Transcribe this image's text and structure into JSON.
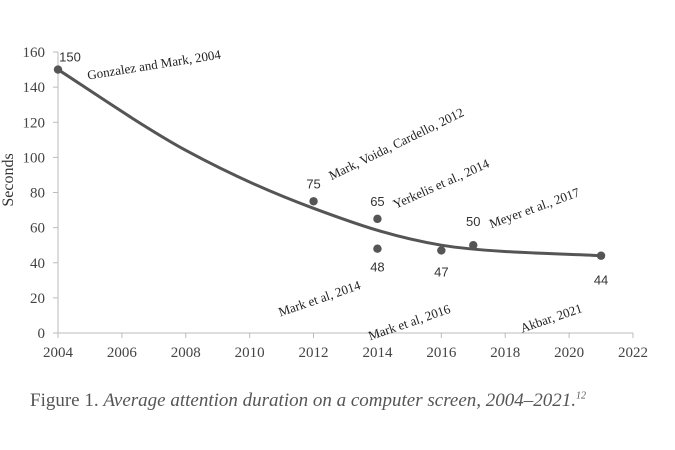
{
  "chart_data": {
    "type": "scatter",
    "ylabel": "Seconds",
    "xlim": [
      2004,
      2022
    ],
    "ylim": [
      0,
      160
    ],
    "xticks": [
      "2004",
      "2006",
      "2008",
      "2010",
      "2012",
      "2014",
      "2016",
      "2018",
      "2020",
      "2022"
    ],
    "yticks": [
      "0",
      "20",
      "40",
      "60",
      "80",
      "100",
      "120",
      "140",
      "160"
    ],
    "grid": false,
    "series": [
      {
        "points": [
          {
            "x": 2004,
            "y": 150,
            "label": "150",
            "citation": "Gonzalez and Mark, 2004"
          },
          {
            "x": 2012,
            "y": 75,
            "label": "75",
            "citation": "Mark, Voida, Cardello, 2012"
          },
          {
            "x": 2014,
            "y": 65,
            "label": "65",
            "citation": "Yerkelis et al., 2014"
          },
          {
            "x": 2014,
            "y": 48,
            "label": "48",
            "citation": "Mark et al, 2014"
          },
          {
            "x": 2016,
            "y": 47,
            "label": "47",
            "citation": "Mark et al, 2016"
          },
          {
            "x": 2017,
            "y": 50,
            "label": "50",
            "citation": "Meyer et al., 2017"
          },
          {
            "x": 2021,
            "y": 44,
            "label": "44",
            "citation": "Akbar, 2021"
          }
        ]
      }
    ],
    "trendline": {
      "type": "polynomial",
      "x": [
        2004,
        2008,
        2012,
        2016,
        2021
      ],
      "y": [
        150,
        104,
        71,
        50,
        44
      ]
    }
  },
  "caption": {
    "prefix": "Figure 1.",
    "title": "Average attention duration on a computer screen, 2004–2021.",
    "footnote": "12"
  }
}
